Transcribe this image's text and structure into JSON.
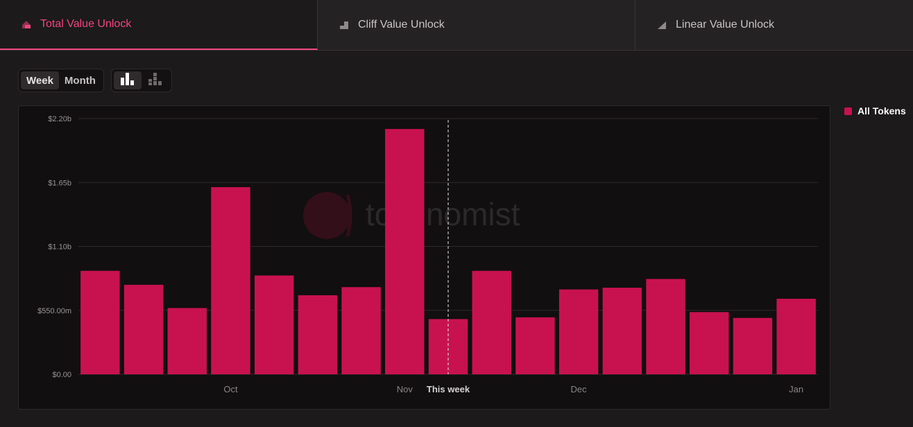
{
  "tabs": [
    {
      "label": "Total Value Unlock",
      "icon": "stacked-blocks-icon",
      "active": true
    },
    {
      "label": "Cliff Value Unlock",
      "icon": "cliff-step-icon",
      "active": false
    },
    {
      "label": "Linear Value Unlock",
      "icon": "linear-ramp-icon",
      "active": false
    }
  ],
  "controls": {
    "period": [
      "Week",
      "Month"
    ],
    "selected_period": "Week",
    "chart_modes": [
      "bar-chart-icon",
      "stacked-bar-chart-icon"
    ],
    "selected_mode": "bar-chart-icon"
  },
  "legend": {
    "label": "All Tokens",
    "color": "#c8124f"
  },
  "watermark": "tokenomist",
  "colors": {
    "accent": "#f0467e",
    "bar": "#c8124f",
    "background": "#1c1a1b",
    "panel": "#110f10"
  },
  "chart_data": {
    "type": "bar",
    "series": [
      {
        "name": "All Tokens",
        "values": [
          890,
          770,
          570,
          1610,
          850,
          680,
          750,
          2110,
          475,
          890,
          490,
          730,
          745,
          820,
          535,
          485,
          650
        ]
      }
    ],
    "value_unit": "millions USD",
    "y_ticks": [
      "$0.00",
      "$550.00m",
      "$1.10b",
      "$1.65b",
      "$2.20b"
    ],
    "ylim": [
      0,
      2200
    ],
    "x_tick_labels": [
      {
        "label": "Oct",
        "bar_index": 3
      },
      {
        "label": "Nov",
        "bar_index": 7
      },
      {
        "label": "This week",
        "bar_index": 8
      },
      {
        "label": "Dec",
        "bar_index": 11
      },
      {
        "label": "Jan",
        "bar_index": 16
      }
    ],
    "current_week_marker_index": 8,
    "grid": true
  }
}
